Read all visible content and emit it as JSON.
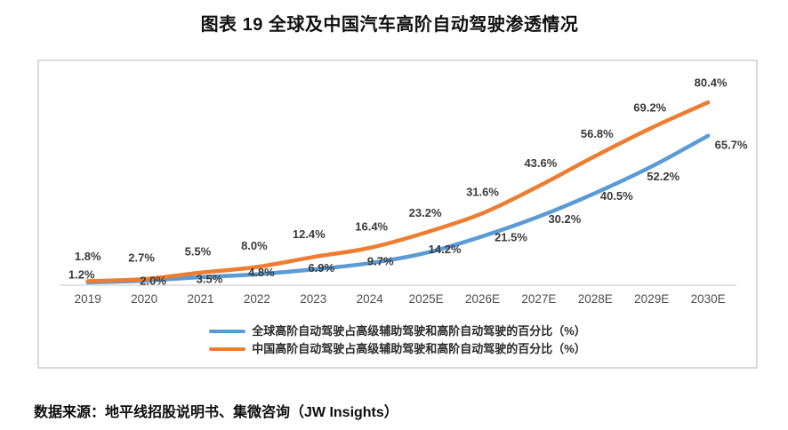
{
  "chart_data": {
    "type": "line",
    "title": "图表 19 全球及中国汽车高阶自动驾驶渗透情况",
    "categories": [
      "2019",
      "2020",
      "2021",
      "2022",
      "2023",
      "2024",
      "2025E",
      "2026E",
      "2027E",
      "2028E",
      "2029E",
      "2030E"
    ],
    "series": [
      {
        "name": "全球高阶自动驾驶占高级辅助驾驶和高阶自动驾驶的百分比（%）",
        "color": "#5B9BD5",
        "values": [
          1.2,
          2.0,
          3.5,
          4.8,
          6.9,
          9.7,
          14.2,
          21.5,
          30.2,
          40.5,
          52.2,
          65.7
        ],
        "labels": [
          "1.2%",
          "2.0%",
          "3.5%",
          "4.8%",
          "6.9%",
          "9.7%",
          "14.2%",
          "21.5%",
          "30.2%",
          "40.5%",
          "52.2%",
          "65.7%"
        ]
      },
      {
        "name": "中国高阶自动驾驶占高级辅助驾驶和高阶自动驾驶的百分比（%）",
        "color": "#ED7D31",
        "values": [
          1.8,
          2.7,
          5.5,
          8.0,
          12.4,
          16.4,
          23.2,
          31.6,
          43.6,
          56.8,
          69.2,
          80.4
        ],
        "labels": [
          "1.8%",
          "2.7%",
          "5.5%",
          "8.0%",
          "12.4%",
          "16.4%",
          "23.2%",
          "31.6%",
          "43.6%",
          "56.8%",
          "69.2%",
          "80.4%"
        ]
      }
    ],
    "ylim": [
      0,
      85
    ],
    "grid": false,
    "data_labels": true,
    "smooth_lines": true,
    "legend_position": "bottom",
    "axis_line_color": "#d9d9d9",
    "tick_label_color": "#4d4d4d",
    "data_label_color": "#3a3a3a",
    "source": "数据来源：地平线招股说明书、集微咨询（JW Insights）"
  }
}
